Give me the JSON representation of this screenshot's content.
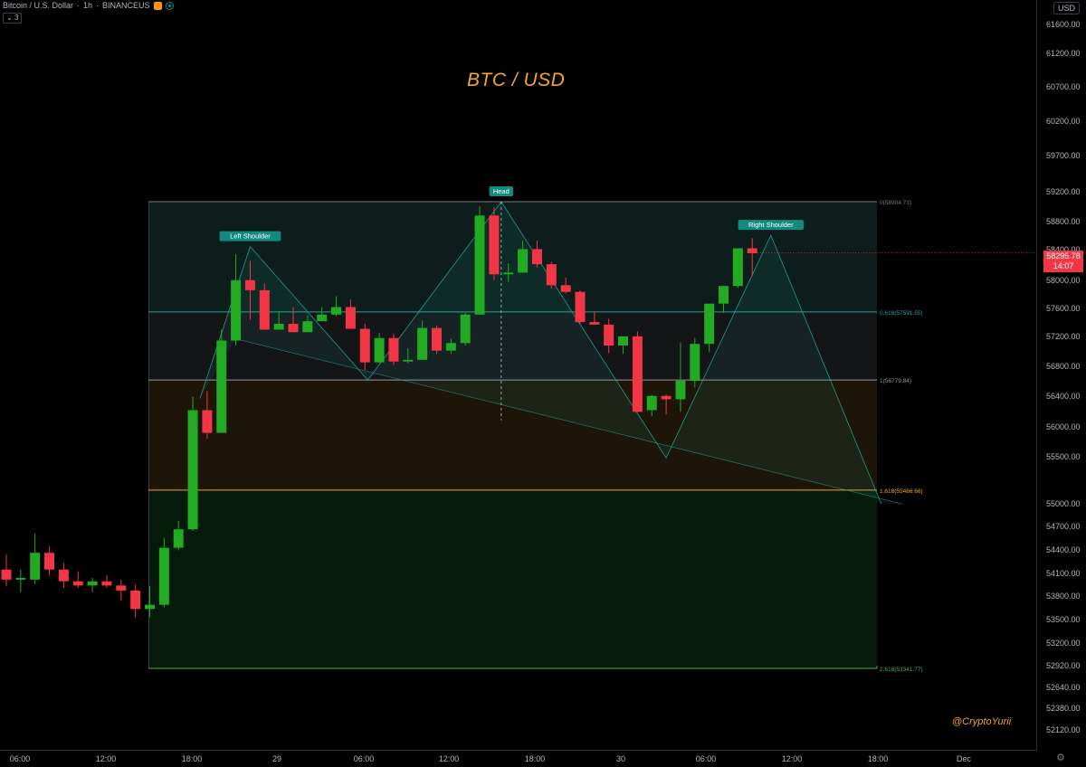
{
  "header": {
    "symbol_desc": "Bitcoin / U.S. Dollar",
    "interval": "1h",
    "exchange": "BINANCEUS",
    "collapse_count": "3",
    "currency": "USD"
  },
  "watermark": "BTC / USD",
  "author": "@CryptoYurii",
  "last_price": {
    "value": "58295.78",
    "countdown": "14:07",
    "color": "#f23645"
  },
  "colors": {
    "up": "#22ab22",
    "down": "#f23645",
    "accent": "#f5a623",
    "teal": "#26a69a"
  },
  "chart_data": {
    "type": "candlestick",
    "y_axis_ticks": [
      "61600.00",
      "61200.00",
      "60700.00",
      "60200.00",
      "59700.00",
      "59200.00",
      "58800.00",
      "58400.00",
      "58000.00",
      "57600.00",
      "57200.00",
      "56800.00",
      "56400.00",
      "56000.00",
      "55500.00",
      "55000.00",
      "54700.00",
      "54400.00",
      "54100.00",
      "53800.00",
      "53500.00",
      "53200.00",
      "52920.00",
      "52640.00",
      "52380.00",
      "52120.00"
    ],
    "x_axis_ticks": [
      "06:00",
      "12:00",
      "18:00",
      "29",
      "06:00",
      "12:00",
      "18:00",
      "30",
      "06:00",
      "12:00",
      "18:00",
      "Dec"
    ],
    "candles": [
      {
        "o": 54520,
        "h": 54700,
        "l": 54320,
        "c": 54400
      },
      {
        "o": 54400,
        "h": 54520,
        "l": 54250,
        "c": 54420
      },
      {
        "o": 54400,
        "h": 54950,
        "l": 54350,
        "c": 54720
      },
      {
        "o": 54720,
        "h": 54800,
        "l": 54450,
        "c": 54520
      },
      {
        "o": 54520,
        "h": 54600,
        "l": 54300,
        "c": 54380
      },
      {
        "o": 54380,
        "h": 54500,
        "l": 54300,
        "c": 54330
      },
      {
        "o": 54330,
        "h": 54420,
        "l": 54250,
        "c": 54380
      },
      {
        "o": 54380,
        "h": 54450,
        "l": 54300,
        "c": 54330
      },
      {
        "o": 54330,
        "h": 54400,
        "l": 54150,
        "c": 54270
      },
      {
        "o": 54270,
        "h": 54340,
        "l": 53950,
        "c": 54050
      },
      {
        "o": 54050,
        "h": 54320,
        "l": 53950,
        "c": 54100
      },
      {
        "o": 54100,
        "h": 54900,
        "l": 54070,
        "c": 54780
      },
      {
        "o": 54780,
        "h": 55100,
        "l": 54750,
        "c": 55000
      },
      {
        "o": 55000,
        "h": 56580,
        "l": 54980,
        "c": 56420
      },
      {
        "o": 56420,
        "h": 56650,
        "l": 56080,
        "c": 56150
      },
      {
        "o": 56150,
        "h": 57380,
        "l": 56150,
        "c": 57250
      },
      {
        "o": 57250,
        "h": 58280,
        "l": 57190,
        "c": 57970
      },
      {
        "o": 57970,
        "h": 58200,
        "l": 57500,
        "c": 57850
      },
      {
        "o": 57850,
        "h": 57930,
        "l": 57380,
        "c": 57380
      },
      {
        "o": 57380,
        "h": 57600,
        "l": 57380,
        "c": 57450
      },
      {
        "o": 57450,
        "h": 57650,
        "l": 57350,
        "c": 57350
      },
      {
        "o": 57350,
        "h": 57550,
        "l": 57350,
        "c": 57480
      },
      {
        "o": 57480,
        "h": 57650,
        "l": 57480,
        "c": 57560
      },
      {
        "o": 57560,
        "h": 57780,
        "l": 57540,
        "c": 57650
      },
      {
        "o": 57650,
        "h": 57740,
        "l": 57420,
        "c": 57390
      },
      {
        "o": 57390,
        "h": 57450,
        "l": 56900,
        "c": 56990
      },
      {
        "o": 56990,
        "h": 57340,
        "l": 56980,
        "c": 57280
      },
      {
        "o": 57280,
        "h": 57330,
        "l": 56960,
        "c": 57000
      },
      {
        "o": 57000,
        "h": 57160,
        "l": 56980,
        "c": 57020
      },
      {
        "o": 57020,
        "h": 57490,
        "l": 57020,
        "c": 57400
      },
      {
        "o": 57400,
        "h": 57430,
        "l": 57090,
        "c": 57130
      },
      {
        "o": 57130,
        "h": 57270,
        "l": 57090,
        "c": 57220
      },
      {
        "o": 57220,
        "h": 57580,
        "l": 57190,
        "c": 57560
      },
      {
        "o": 57560,
        "h": 58850,
        "l": 57560,
        "c": 58740
      },
      {
        "o": 58740,
        "h": 58840,
        "l": 57970,
        "c": 58040
      },
      {
        "o": 58040,
        "h": 58170,
        "l": 57950,
        "c": 58060
      },
      {
        "o": 58060,
        "h": 58440,
        "l": 58060,
        "c": 58340
      },
      {
        "o": 58340,
        "h": 58440,
        "l": 58120,
        "c": 58160
      },
      {
        "o": 58160,
        "h": 58190,
        "l": 57870,
        "c": 57910
      },
      {
        "o": 57910,
        "h": 58000,
        "l": 57810,
        "c": 57830
      },
      {
        "o": 57830,
        "h": 57850,
        "l": 57450,
        "c": 57470
      },
      {
        "o": 57470,
        "h": 57600,
        "l": 57440,
        "c": 57440
      },
      {
        "o": 57440,
        "h": 57510,
        "l": 57100,
        "c": 57190
      },
      {
        "o": 57190,
        "h": 57300,
        "l": 57090,
        "c": 57300
      },
      {
        "o": 57300,
        "h": 57360,
        "l": 56400,
        "c": 56400
      },
      {
        "o": 56420,
        "h": 56600,
        "l": 56350,
        "c": 56590
      },
      {
        "o": 56590,
        "h": 56610,
        "l": 56370,
        "c": 56550
      },
      {
        "o": 56550,
        "h": 57220,
        "l": 56400,
        "c": 56770
      },
      {
        "o": 56770,
        "h": 57280,
        "l": 56690,
        "c": 57210
      },
      {
        "o": 57210,
        "h": 57660,
        "l": 57110,
        "c": 57690
      },
      {
        "o": 57690,
        "h": 57900,
        "l": 57580,
        "c": 57900
      },
      {
        "o": 57900,
        "h": 58350,
        "l": 57880,
        "c": 58350
      },
      {
        "o": 58350,
        "h": 58470,
        "l": 58020,
        "c": 58290
      }
    ],
    "fib": [
      {
        "label": "0(58904.73)",
        "price": 58904.73,
        "color": "#787b86"
      },
      {
        "label": "0.618(57591.55)",
        "price": 57591.55,
        "color": "#26a69a"
      },
      {
        "label": "1(56779.84)",
        "price": 56779.84,
        "color": "#9598a1"
      },
      {
        "label": "1.618(55466.66)",
        "price": 55466.66,
        "color": "#f5a623"
      },
      {
        "label": "2.618(53341.77)",
        "price": 53341.77,
        "color": "#4caf50"
      }
    ],
    "pattern_labels": [
      {
        "text": "Left Shoulder",
        "candle": 17,
        "price": 58370
      },
      {
        "text": "Head",
        "candle": 34.5,
        "price": 58904.73
      },
      {
        "text": "Right Shoulder",
        "candle": 53.3,
        "price": 58505
      }
    ],
    "pattern_points": [
      {
        "candle": 13.5,
        "price": 56560
      },
      {
        "candle": 17,
        "price": 58370
      },
      {
        "candle": 25.2,
        "price": 56779.84
      },
      {
        "candle": 34.5,
        "price": 58904.73
      },
      {
        "candle": 46,
        "price": 55850
      },
      {
        "candle": 53.3,
        "price": 58505
      },
      {
        "candle": 61,
        "price": 55300
      }
    ],
    "neckline": [
      {
        "candle": 16,
        "price": 57270
      },
      {
        "candle": 62.5,
        "price": 55300
      }
    ]
  }
}
